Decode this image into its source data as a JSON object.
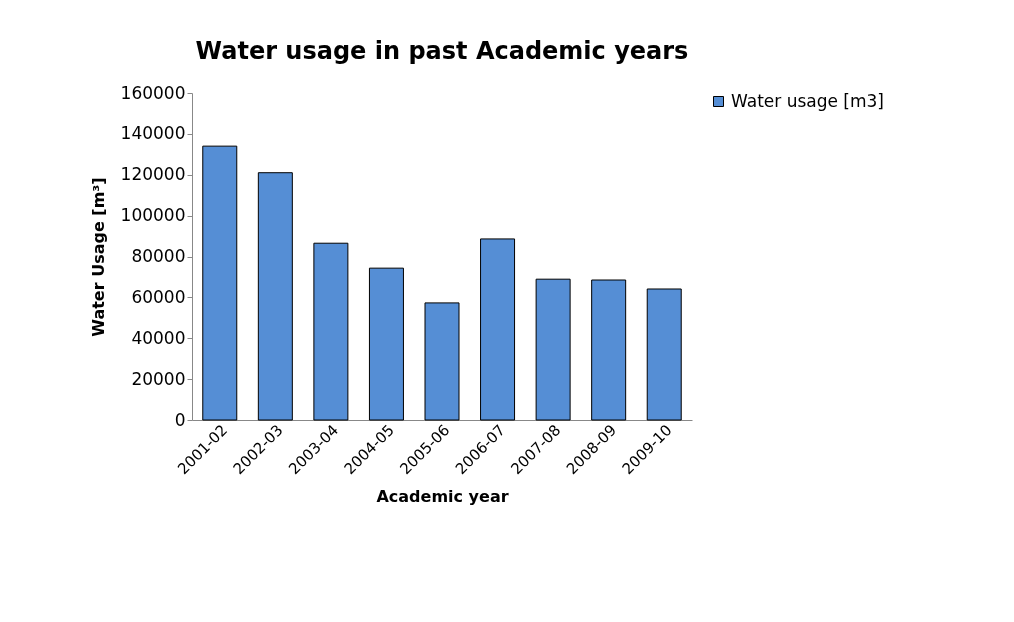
{
  "chart_data": {
    "type": "bar",
    "title": "Water usage in past Academic years",
    "xlabel": "Academic year",
    "ylabel": "Water Usage [m³]",
    "categories": [
      "2001-02",
      "2002-03",
      "2003-04",
      "2004-05",
      "2005-06",
      "2006-07",
      "2007-08",
      "2008-09",
      "2009-10"
    ],
    "series": [
      {
        "name": "Water usage [m3]",
        "color": "#558ed5",
        "values": [
          134000,
          121000,
          86500,
          74300,
          57300,
          88600,
          68900,
          68500,
          64100
        ]
      }
    ],
    "ylim": [
      0,
      160000
    ],
    "yticks": [
      0,
      20000,
      40000,
      60000,
      80000,
      100000,
      120000,
      140000,
      160000
    ],
    "grid": false,
    "legend": "right"
  }
}
